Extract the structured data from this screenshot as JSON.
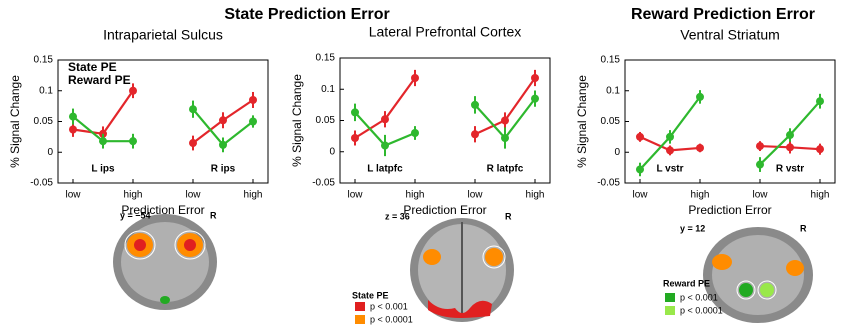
{
  "headings": [
    "State Prediction Error",
    "Reward Prediction Error"
  ],
  "brain_panels": [
    {
      "slice": "y = −54",
      "side": "R"
    },
    {
      "slice": "z = 36",
      "side": "R",
      "legend": {
        "title": "State PE",
        "items": [
          "p < 0.001",
          "p < 0.0001"
        ]
      }
    },
    {
      "slice": "y = 12",
      "side": "R",
      "legend": {
        "title": "Reward PE",
        "items": [
          "p < 0.001",
          "p < 0.0001"
        ]
      }
    }
  ],
  "chart_data": [
    {
      "type": "line",
      "title": "Intraparietal Sulcus",
      "x_label": "Prediction Error",
      "y_label": "% Signal Change",
      "categories": [
        "low",
        null,
        "high",
        null,
        "low",
        null,
        "high"
      ],
      "group_labels": [
        "L ips",
        "R ips"
      ],
      "ylim": [
        -0.05,
        0.15
      ],
      "yticks": [
        -0.05,
        0,
        0.05,
        0.1,
        0.15
      ],
      "legend": "upper left",
      "series": [
        {
          "name": "State PE",
          "color": "#e3262b",
          "values": [
            0.037,
            0.03,
            0.1,
            null,
            0.015,
            0.052,
            0.085
          ],
          "errors": [
            0.012,
            0.012,
            0.012,
            null,
            0.012,
            0.013,
            0.013
          ]
        },
        {
          "name": "Reward PE",
          "color": "#2eb82e",
          "values": [
            0.058,
            0.018,
            0.018,
            null,
            0.07,
            0.012,
            0.05
          ],
          "errors": [
            0.013,
            0.012,
            0.012,
            null,
            0.014,
            0.012,
            0.01
          ]
        }
      ]
    },
    {
      "type": "line",
      "title": "Lateral Prefrontal Cortex",
      "x_label": "Prediction Error",
      "y_label": "% Signal Change",
      "categories": [
        "low",
        null,
        "high",
        null,
        "low",
        null,
        "high"
      ],
      "group_labels": [
        "L latpfc",
        "R latpfc"
      ],
      "ylim": [
        -0.05,
        0.15
      ],
      "yticks": [
        -0.05,
        0,
        0.05,
        0.1,
        0.15
      ],
      "series": [
        {
          "color": "#e3262b",
          "values": [
            0.022,
            0.052,
            0.118,
            null,
            0.028,
            0.05,
            0.118
          ],
          "errors": [
            0.012,
            0.013,
            0.013,
            null,
            0.013,
            0.013,
            0.013
          ]
        },
        {
          "color": "#2eb82e",
          "values": [
            0.063,
            0.01,
            0.03,
            null,
            0.075,
            0.022,
            0.085
          ],
          "errors": [
            0.014,
            0.017,
            0.011,
            null,
            0.014,
            0.017,
            0.013
          ]
        }
      ]
    },
    {
      "type": "line",
      "title": "Ventral Striatum",
      "x_label": "Prediction Error",
      "y_label": "% Signal Change",
      "categories": [
        "low",
        null,
        "high",
        null,
        "low",
        null,
        "high"
      ],
      "group_labels": [
        "L vstr",
        "R vstr"
      ],
      "ylim": [
        -0.05,
        0.15
      ],
      "yticks": [
        -0.05,
        0,
        0.05,
        0.1,
        0.15
      ],
      "series": [
        {
          "color": "#e3262b",
          "values": [
            0.025,
            0.003,
            0.007,
            null,
            0.01,
            0.008,
            0.005
          ],
          "errors": [
            0.008,
            0.008,
            0.007,
            null,
            0.008,
            0.01,
            0.009
          ]
        },
        {
          "color": "#2eb82e",
          "values": [
            -0.028,
            0.025,
            0.09,
            null,
            -0.02,
            0.028,
            0.083
          ],
          "errors": [
            0.011,
            0.011,
            0.011,
            null,
            0.012,
            0.011,
            0.012
          ]
        }
      ]
    }
  ]
}
